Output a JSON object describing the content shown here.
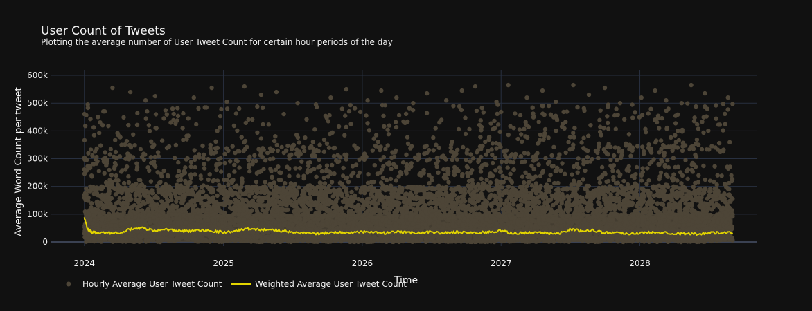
{
  "chart_data": {
    "type": "scatter",
    "title": "User Count of Tweets",
    "subtitle": "Plotting the average number of User Tweet Count for certain hour periods of the day",
    "xlabel": "Time",
    "ylabel": "Average Word Count per tweet",
    "xlim": [
      "2023-10-06",
      "2028-11-03"
    ],
    "ylim": [
      -15000,
      620000
    ],
    "x_ticks": [
      {
        "label": "2024",
        "value": "2024-01-01"
      },
      {
        "label": "2025",
        "value": "2025-01-01"
      },
      {
        "label": "2026",
        "value": "2026-01-01"
      },
      {
        "label": "2027",
        "value": "2027-01-01"
      },
      {
        "label": "2028",
        "value": "2028-01-01"
      }
    ],
    "y_ticks": [
      {
        "label": "0",
        "value": 0
      },
      {
        "label": "100k",
        "value": 100000
      },
      {
        "label": "200k",
        "value": 200000
      },
      {
        "label": "300k",
        "value": 300000
      },
      {
        "label": "400k",
        "value": 400000
      },
      {
        "label": "500k",
        "value": 500000
      },
      {
        "label": "600k",
        "value": 600000
      }
    ],
    "grid": true,
    "legend_position": "bottom-left",
    "series": [
      {
        "name": "Hourly Average User Tweet Count",
        "type": "scatter",
        "color": "#4d4537",
        "x_start": "2024-01-01",
        "x_end": "2028-09-01",
        "points": [
          [
            "2024-01-10",
            495000
          ],
          [
            "2024-02-20",
            470000
          ],
          [
            "2024-03-15",
            555000
          ],
          [
            "2024-05-01",
            540000
          ],
          [
            "2024-06-10",
            510000
          ],
          [
            "2024-07-05",
            525000
          ],
          [
            "2024-08-20",
            480000
          ],
          [
            "2024-10-15",
            520000
          ],
          [
            "2024-12-01",
            555000
          ],
          [
            "2025-01-10",
            505000
          ],
          [
            "2025-02-25",
            560000
          ],
          [
            "2025-04-10",
            530000
          ],
          [
            "2025-05-20",
            540000
          ],
          [
            "2025-07-15",
            500000
          ],
          [
            "2025-09-01",
            495000
          ],
          [
            "2025-10-10",
            520000
          ],
          [
            "2025-11-20",
            550000
          ],
          [
            "2026-01-15",
            510000
          ],
          [
            "2026-02-20",
            545000
          ],
          [
            "2026-04-01",
            520000
          ],
          [
            "2026-05-15",
            500000
          ],
          [
            "2026-06-20",
            535000
          ],
          [
            "2026-08-10",
            510000
          ],
          [
            "2026-09-20",
            545000
          ],
          [
            "2026-10-25",
            560000
          ],
          [
            "2026-12-20",
            505000
          ],
          [
            "2027-01-20",
            565000
          ],
          [
            "2027-03-10",
            520000
          ],
          [
            "2027-04-20",
            545000
          ],
          [
            "2027-05-25",
            505000
          ],
          [
            "2027-07-10",
            565000
          ],
          [
            "2027-08-20",
            530000
          ],
          [
            "2027-10-01",
            555000
          ],
          [
            "2027-11-10",
            500000
          ],
          [
            "2028-01-05",
            520000
          ],
          [
            "2028-02-10",
            545000
          ],
          [
            "2028-03-10",
            510000
          ],
          [
            "2028-04-20",
            500000
          ],
          [
            "2028-05-15",
            565000
          ],
          [
            "2028-06-20",
            535000
          ],
          [
            "2028-08-20",
            520000
          ]
        ],
        "density_bands": [
          {
            "ymax": 500000,
            "count": 1000
          },
          {
            "ymax": 350000,
            "count": 1200
          },
          {
            "ymax": 200000,
            "count": 3200
          },
          {
            "ymax": 100000,
            "count": 2600
          }
        ]
      },
      {
        "name": "Weighted Average User Tweet Count",
        "type": "line",
        "color": "#e3d500",
        "x": [
          "2024-01-01",
          "2024-01-10",
          "2024-01-20",
          "2024-02-01",
          "2024-03-01",
          "2024-04-01",
          "2024-05-01",
          "2024-06-01",
          "2024-07-01",
          "2024-08-01",
          "2024-09-01",
          "2024-10-01",
          "2024-11-01",
          "2024-12-01",
          "2025-01-01",
          "2025-02-01",
          "2025-03-01",
          "2025-04-01",
          "2025-05-01",
          "2025-06-01",
          "2025-07-01",
          "2025-08-01",
          "2025-09-01",
          "2025-10-01",
          "2025-11-01",
          "2025-12-01",
          "2026-01-01",
          "2026-02-01",
          "2026-03-01",
          "2026-04-01",
          "2026-05-01",
          "2026-06-01",
          "2026-07-01",
          "2026-08-01",
          "2026-09-01",
          "2026-10-01",
          "2026-11-01",
          "2026-12-01",
          "2027-01-01",
          "2027-02-01",
          "2027-03-01",
          "2027-04-01",
          "2027-05-01",
          "2027-06-01",
          "2027-07-01",
          "2027-08-01",
          "2027-09-01",
          "2027-10-01",
          "2027-11-01",
          "2027-12-01",
          "2028-01-01",
          "2028-02-01",
          "2028-03-01",
          "2028-04-01",
          "2028-05-01",
          "2028-06-01",
          "2028-07-01",
          "2028-08-01",
          "2028-09-01"
        ],
        "y": [
          85000,
          45000,
          35000,
          33000,
          32000,
          34000,
          45000,
          50000,
          42000,
          44000,
          40000,
          38000,
          43000,
          40000,
          35000,
          38000,
          48000,
          44000,
          45000,
          40000,
          34000,
          33000,
          30000,
          33000,
          35000,
          33000,
          36000,
          34000,
          32000,
          35000,
          34000,
          33000,
          36000,
          32000,
          35000,
          34000,
          33000,
          35000,
          40000,
          30000,
          33000,
          34000,
          32000,
          30000,
          45000,
          40000,
          42000,
          33000,
          34000,
          30000,
          32000,
          34000,
          36000,
          30000,
          30000,
          28000,
          34000,
          32000,
          33000
        ]
      }
    ]
  }
}
